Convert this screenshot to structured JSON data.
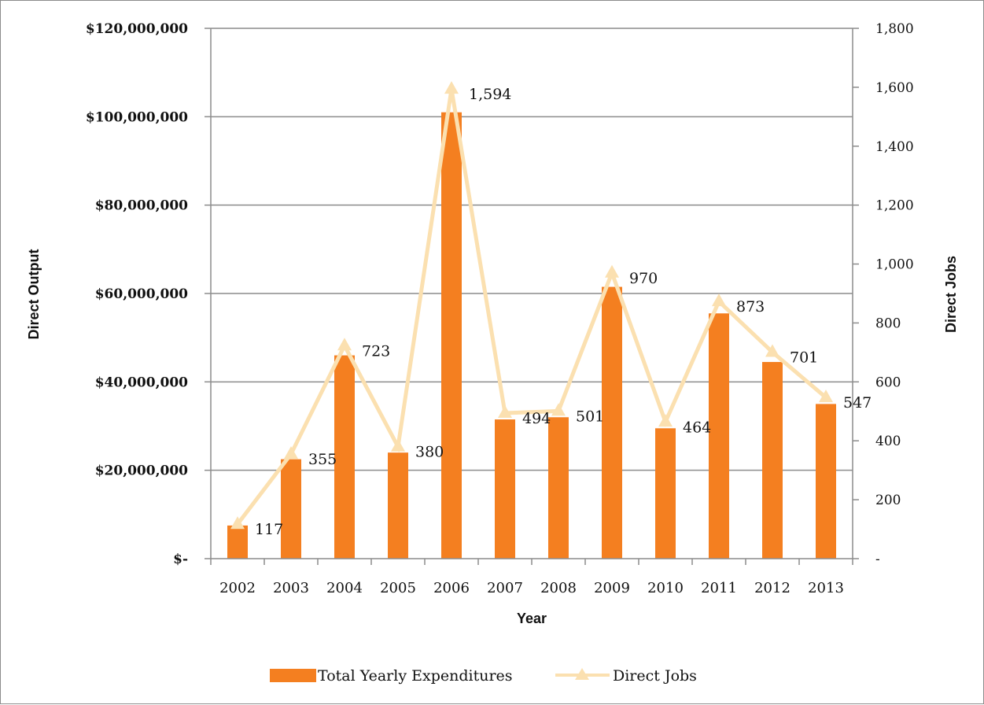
{
  "chart_data": {
    "type": "bar",
    "categories": [
      "2002",
      "2003",
      "2004",
      "2005",
      "2006",
      "2007",
      "2008",
      "2009",
      "2010",
      "2011",
      "2012",
      "2013"
    ],
    "series": [
      {
        "name": "Total Yearly Expenditures",
        "type": "bar",
        "axis": "left",
        "color": "#f47f20",
        "values": [
          7500000,
          22500000,
          46000000,
          24000000,
          101000000,
          31500000,
          32000000,
          61500000,
          29500000,
          55500000,
          44500000,
          35000000
        ]
      },
      {
        "name": "Direct Jobs",
        "type": "line",
        "axis": "right",
        "marker": "triangle",
        "color": "#fbe0b0",
        "values": [
          117,
          355,
          723,
          380,
          1594,
          494,
          501,
          970,
          464,
          873,
          701,
          547
        ],
        "data_labels": [
          "117",
          "355",
          "723",
          "380",
          "1,594",
          "494",
          "501",
          "970",
          "464",
          "873",
          "701",
          "547"
        ]
      }
    ],
    "xlabel": "Year",
    "ylabel_left": "Direct Output",
    "ylabel_right": "Direct Jobs",
    "ylim_left": [
      0,
      120000000
    ],
    "ylim_right": [
      0,
      1800
    ],
    "yticks_left": [
      "$-",
      "$20,000,000",
      "$40,000,000",
      "$60,000,000",
      "$80,000,000",
      "$100,000,000",
      "$120,000,000"
    ],
    "yticks_right": [
      "-",
      "200",
      "400",
      "600",
      "800",
      "1,000",
      "1,200",
      "1,400",
      "1,600",
      "1,800"
    ],
    "grid": true,
    "legend_position": "bottom"
  }
}
